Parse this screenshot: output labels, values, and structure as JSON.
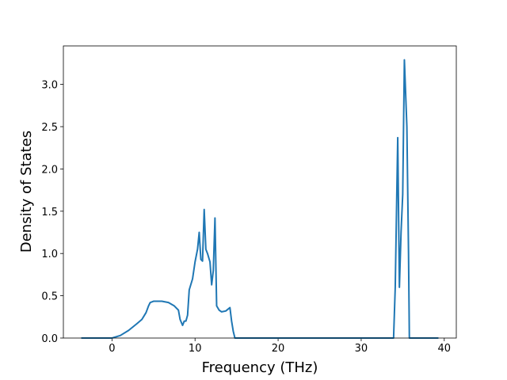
{
  "chart_data": {
    "type": "line",
    "x_label": "Frequency (THz)",
    "y_label": "Density of States",
    "x": [
      -3.7,
      0,
      1,
      2,
      3,
      3.6,
      4.1,
      4.4,
      4.6,
      5,
      6,
      6.8,
      7.5,
      8,
      8.2,
      8.5,
      8.7,
      8.9,
      9.1,
      9.3,
      9.7,
      10,
      10.3,
      10.5,
      10.7,
      10.9,
      11.1,
      11.3,
      11.5,
      11.8,
      12,
      12.2,
      12.4,
      12.6,
      12.9,
      13.2,
      13.7,
      14.2,
      14.4,
      14.6,
      14.8,
      33.9,
      34.1,
      34.4,
      34.6,
      34.8,
      35,
      35.2,
      35.5,
      35.7,
      35.8,
      39.3
    ],
    "series": [
      {
        "color": "#1f77b4",
        "values": [
          0,
          0,
          0.03,
          0.09,
          0.17,
          0.22,
          0.3,
          0.38,
          0.42,
          0.435,
          0.435,
          0.42,
          0.38,
          0.33,
          0.22,
          0.15,
          0.2,
          0.2,
          0.27,
          0.57,
          0.7,
          0.9,
          1.05,
          1.25,
          0.93,
          0.91,
          1.52,
          1.05,
          1.0,
          0.9,
          0.63,
          0.8,
          1.42,
          0.38,
          0.33,
          0.31,
          0.32,
          0.36,
          0.2,
          0.08,
          0,
          0,
          0.6,
          2.37,
          0.6,
          1.25,
          1.7,
          3.29,
          2.5,
          1.0,
          0,
          0
        ]
      }
    ],
    "xlim": [
      -5.85,
      41.45
    ],
    "ylim": [
      0,
      3.455
    ],
    "xticks": [
      0,
      10,
      20,
      30,
      40
    ],
    "yticks": [
      {
        "value": 0,
        "label": "0.0"
      },
      0.5,
      {
        "value": 1,
        "label": "1.0"
      },
      1.5,
      {
        "value": 2,
        "label": "2.0"
      },
      2.5,
      {
        "value": 3,
        "label": "3.0"
      }
    ],
    "grid": false
  }
}
